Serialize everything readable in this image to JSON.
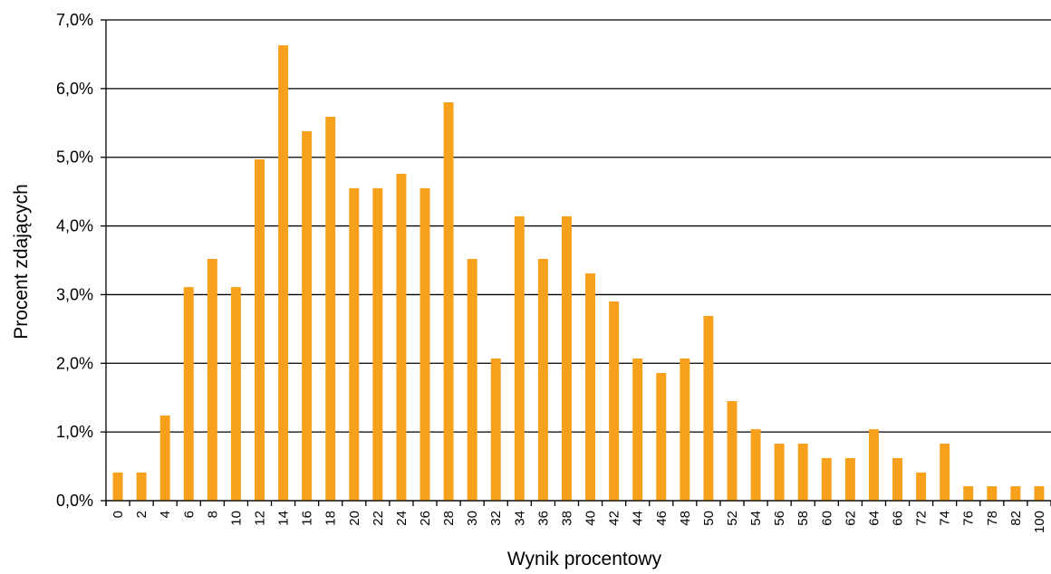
{
  "colors": {
    "bar": "#F7A01C",
    "grid": "#000000",
    "background": "#FFFFFF"
  },
  "chart_data": {
    "type": "bar",
    "title": "",
    "xlabel": "Wynik procentowy",
    "ylabel": "Procent zdających",
    "ylim": [
      0,
      7
    ],
    "y_ticks": [
      "0,0%",
      "1,0%",
      "2,0%",
      "3,0%",
      "4,0%",
      "5,0%",
      "6,0%",
      "7,0%"
    ],
    "grid": "horizontal",
    "legend": "none",
    "categories": [
      "0",
      "2",
      "4",
      "6",
      "8",
      "10",
      "12",
      "14",
      "16",
      "18",
      "20",
      "22",
      "24",
      "26",
      "28",
      "30",
      "32",
      "34",
      "36",
      "38",
      "40",
      "42",
      "44",
      "46",
      "48",
      "50",
      "52",
      "54",
      "56",
      "58",
      "60",
      "62",
      "64",
      "66",
      "72",
      "74",
      "76",
      "78",
      "82",
      "100"
    ],
    "values": [
      0.41,
      0.41,
      1.24,
      3.11,
      3.52,
      3.11,
      4.97,
      6.63,
      5.38,
      5.59,
      4.55,
      4.55,
      4.76,
      4.55,
      5.8,
      3.52,
      2.07,
      4.14,
      3.52,
      4.14,
      3.31,
      2.9,
      2.07,
      1.86,
      2.07,
      2.69,
      1.45,
      1.04,
      0.83,
      0.83,
      0.62,
      0.62,
      1.04,
      0.62,
      0.41,
      0.83,
      0.21,
      0.21,
      0.21,
      0.21
    ]
  }
}
